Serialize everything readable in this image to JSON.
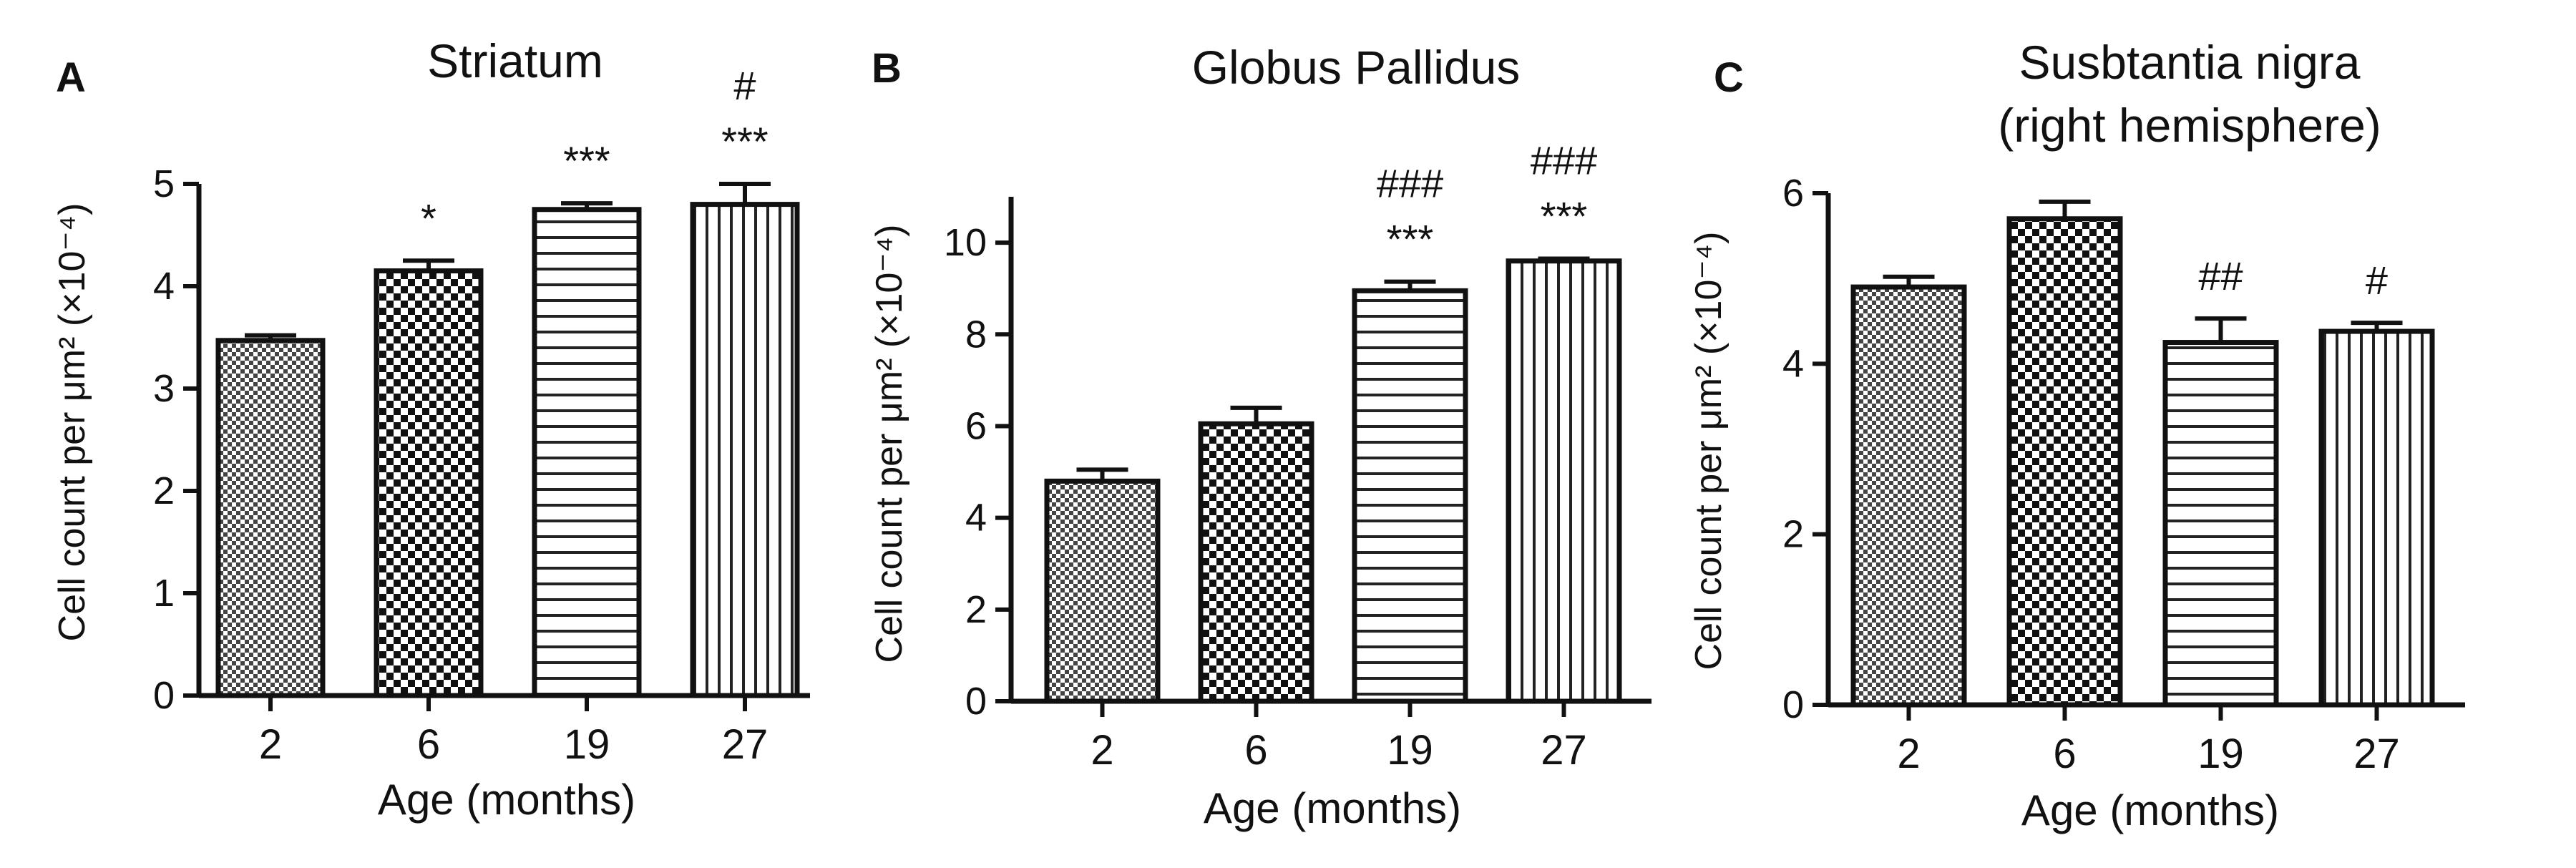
{
  "chart_data": [
    {
      "panel_letter": "A",
      "type": "bar",
      "title": "Striatum",
      "categories": [
        "2",
        "6",
        "19",
        "27"
      ],
      "values": [
        3.47,
        4.15,
        4.75,
        4.8
      ],
      "errors": [
        0.05,
        0.1,
        0.06,
        0.2
      ],
      "annotations": [
        [
          ""
        ],
        [
          "*"
        ],
        [
          "***"
        ],
        [
          "***",
          "#"
        ]
      ],
      "patterns": [
        "fine-check",
        "coarse-check",
        "horizontal-lines",
        "vertical-lines"
      ],
      "xlabel": "Age (months)",
      "ylabel": "Cell count per μm² (×10⁻⁴)",
      "ylim": [
        0,
        5
      ],
      "yticks": [
        0,
        1,
        2,
        3,
        4,
        5
      ],
      "ytick_labels": [
        "0",
        "1",
        "2",
        "3",
        "4",
        "5"
      ]
    },
    {
      "panel_letter": "B",
      "type": "bar",
      "title": "Globus Pallidus",
      "categories": [
        "2",
        "6",
        "19",
        "27"
      ],
      "values": [
        4.8,
        6.05,
        8.95,
        9.6
      ],
      "errors": [
        0.25,
        0.35,
        0.2,
        0.05
      ],
      "annotations": [
        [
          ""
        ],
        [
          ""
        ],
        [
          "***",
          "###"
        ],
        [
          "***",
          "###"
        ]
      ],
      "patterns": [
        "fine-check",
        "coarse-check",
        "horizontal-lines",
        "vertical-lines"
      ],
      "xlabel": "Age (months)",
      "ylabel": "Cell count per μm² (×10⁻⁴)",
      "ylim": [
        0,
        11
      ],
      "yticks": [
        0,
        2,
        4,
        6,
        8,
        10
      ],
      "ytick_labels": [
        "0",
        "2",
        "4",
        "6",
        "8",
        "10"
      ]
    },
    {
      "panel_letter": "C",
      "type": "bar",
      "title": "Susbtantia nigra",
      "subtitle": "(right hemisphere)",
      "categories": [
        "2",
        "6",
        "19",
        "27"
      ],
      "values": [
        4.9,
        5.7,
        4.25,
        4.38
      ],
      "errors": [
        0.12,
        0.2,
        0.28,
        0.1
      ],
      "annotations": [
        [
          ""
        ],
        [
          ""
        ],
        [
          "##"
        ],
        [
          "#"
        ]
      ],
      "patterns": [
        "fine-check",
        "coarse-check",
        "horizontal-lines",
        "vertical-lines"
      ],
      "xlabel": "Age (months)",
      "ylabel": "Cell count per μm² (×10⁻⁴)",
      "ylim": [
        0,
        6
      ],
      "yticks": [
        0,
        2,
        4,
        6
      ],
      "ytick_labels": [
        "0",
        "2",
        "4",
        "6"
      ]
    }
  ]
}
